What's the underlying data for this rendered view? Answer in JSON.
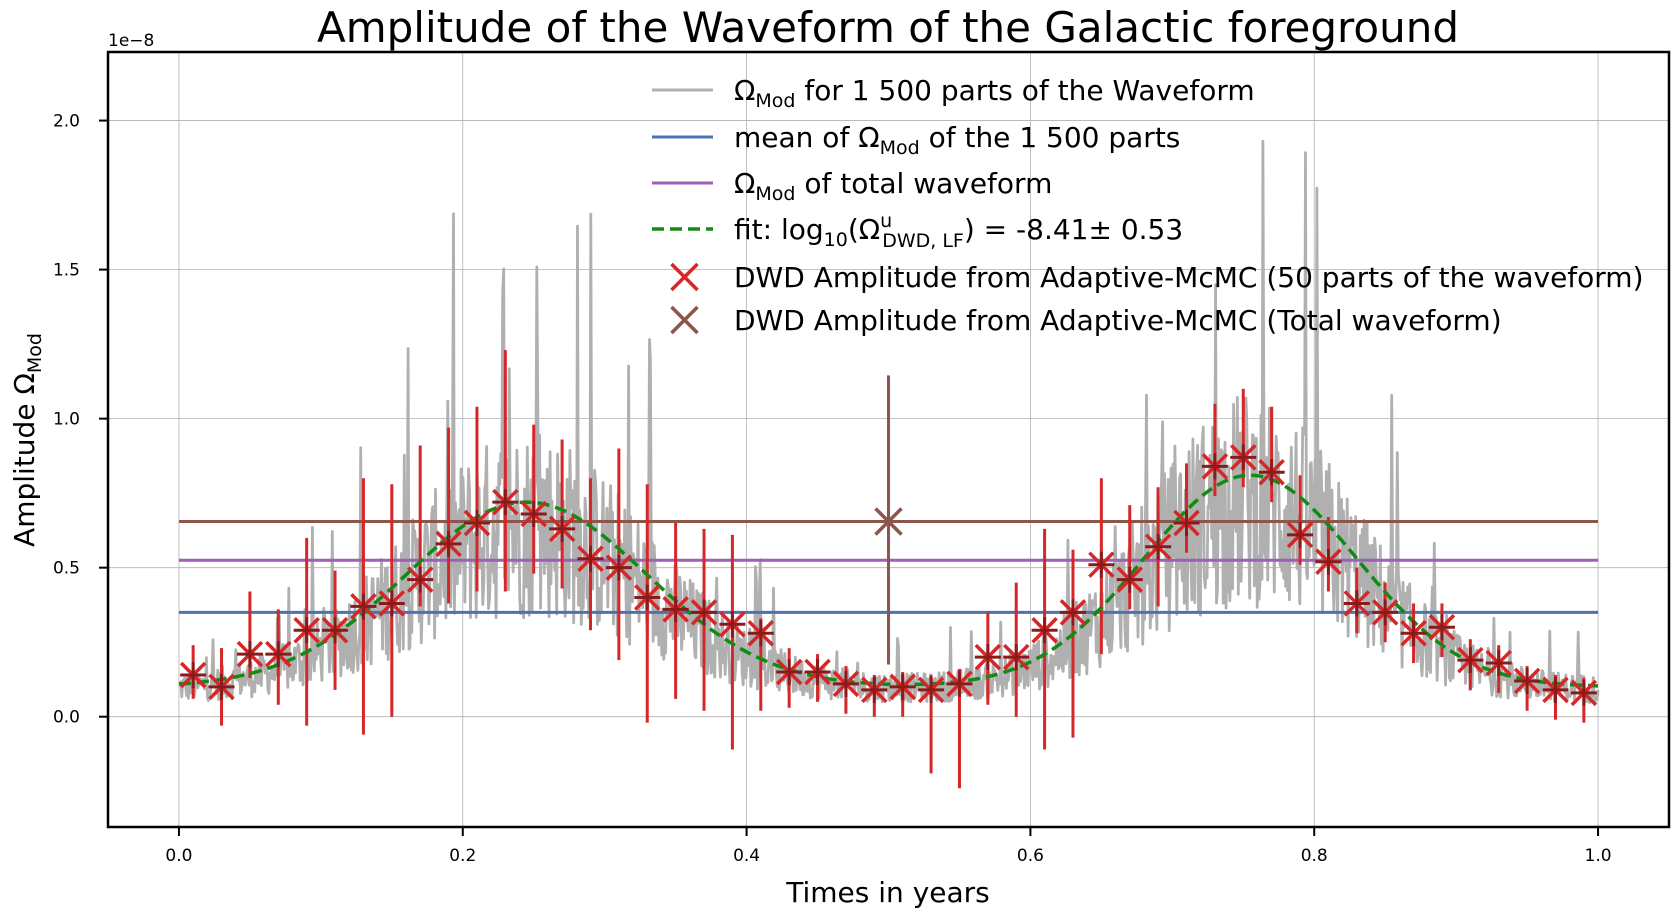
{
  "chart_data": {
    "type": "line",
    "title": "Amplitude of the Waveform of the Galactic foreground",
    "xlabel": "Times in years",
    "ylabel_text": "Amplitude Ω",
    "ylabel_sub": "Mod",
    "xlim": [
      -0.05,
      1.05
    ],
    "ylim": [
      -0.37,
      2.23
    ],
    "offset_text": "1e−8",
    "scale": 1e-08,
    "xticks": [
      0.0,
      0.2,
      0.4,
      0.6,
      0.8,
      1.0
    ],
    "xtick_labels": [
      "0.0",
      "0.2",
      "0.4",
      "0.6",
      "0.8",
      "1.0"
    ],
    "yticks": [
      0.0,
      0.5,
      1.0,
      1.5,
      2.0
    ],
    "ytick_labels": [
      "0.0",
      "0.5",
      "1.0",
      "1.5",
      "2.0"
    ],
    "grid": true,
    "legend_position": "top-right",
    "colors": {
      "parts": "#b0b0b0",
      "mean": "#4c72b0",
      "total": "#a05eb5",
      "fit": "#138a13",
      "markers_parts": "#d62728",
      "markers_parts_dark": "#8b1a1a",
      "markers_total": "#8c564b"
    },
    "legend": [
      {
        "kind": "line",
        "color_key": "parts",
        "main": "Ω",
        "sub": "Mod",
        "text": " for 1 500  parts of the Waveform"
      },
      {
        "kind": "line",
        "color_key": "mean",
        "pre": "mean of Ω",
        "sub": "Mod",
        "text": " of the 1 500 parts"
      },
      {
        "kind": "line",
        "color_key": "total",
        "main": "Ω",
        "sub": "Mod",
        "text": " of total waveform"
      },
      {
        "kind": "dash",
        "color_key": "fit",
        "pre": "fit: log",
        "sub10": "10",
        "open": "(Ω",
        "sup": "u",
        "sub2": "DWD, LF",
        "text": ") = -8.41± 0.53"
      },
      {
        "kind": "x",
        "color_key": "markers_parts",
        "text": "DWD Amplitude from Adaptive-McMC (50 parts of the waveform)"
      },
      {
        "kind": "x",
        "color_key": "markers_total",
        "text": "DWD Amplitude from Adaptive-McMC (Total waveform)"
      }
    ],
    "hlines": {
      "mean": 0.35,
      "total": 0.525,
      "total_mcmc": 0.655
    },
    "fit_curve": {
      "baseline": 0.1,
      "peaks": [
        {
          "center": 0.245,
          "amp": 0.62,
          "width": 0.085
        },
        {
          "center": 0.755,
          "amp": 0.71,
          "width": 0.075
        }
      ]
    },
    "noise_trace": {
      "samples": 1500,
      "spike_prob": 0.045
    },
    "mcmc_parts": {
      "x": [
        0.01,
        0.03,
        0.05,
        0.07,
        0.09,
        0.11,
        0.13,
        0.15,
        0.17,
        0.19,
        0.21,
        0.23,
        0.25,
        0.27,
        0.29,
        0.31,
        0.33,
        0.35,
        0.37,
        0.39,
        0.41,
        0.43,
        0.45,
        0.47,
        0.49,
        0.51,
        0.53,
        0.55,
        0.57,
        0.59,
        0.61,
        0.63,
        0.65,
        0.67,
        0.69,
        0.71,
        0.73,
        0.75,
        0.77,
        0.79,
        0.81,
        0.83,
        0.85,
        0.87,
        0.89,
        0.91,
        0.93,
        0.95,
        0.97,
        0.99
      ],
      "y": [
        0.14,
        0.1,
        0.21,
        0.21,
        0.29,
        0.29,
        0.37,
        0.38,
        0.46,
        0.58,
        0.65,
        0.72,
        0.68,
        0.63,
        0.53,
        0.5,
        0.4,
        0.36,
        0.35,
        0.31,
        0.28,
        0.15,
        0.15,
        0.11,
        0.09,
        0.1,
        0.09,
        0.11,
        0.2,
        0.2,
        0.29,
        0.35,
        0.51,
        0.46,
        0.57,
        0.65,
        0.84,
        0.87,
        0.82,
        0.61,
        0.52,
        0.38,
        0.35,
        0.28,
        0.3,
        0.19,
        0.18,
        0.12,
        0.09,
        0.08
      ],
      "err_low": [
        0.08,
        0.13,
        0.08,
        0.17,
        0.32,
        0.2,
        0.43,
        0.38,
        0.09,
        0.2,
        0.23,
        0.3,
        0.2,
        0.2,
        0.24,
        0.31,
        0.42,
        0.3,
        0.33,
        0.42,
        0.26,
        0.12,
        0.1,
        0.1,
        0.09,
        0.1,
        0.28,
        0.35,
        0.16,
        0.2,
        0.4,
        0.42,
        0.3,
        0.1,
        0.2,
        0.1,
        0.1,
        0.1,
        0.1,
        0.1,
        0.1,
        0.1,
        0.1,
        0.1,
        0.1,
        0.1,
        0.1,
        0.1,
        0.1,
        0.1
      ],
      "err_high": [
        0.1,
        0.13,
        0.21,
        0.15,
        0.31,
        0.2,
        0.43,
        0.4,
        0.45,
        0.39,
        0.39,
        0.51,
        0.3,
        0.3,
        0.27,
        0.4,
        0.38,
        0.29,
        0.28,
        0.3,
        0.05,
        0.08,
        0.06,
        0.06,
        0.05,
        0.05,
        0.05,
        0.05,
        0.15,
        0.25,
        0.34,
        0.21,
        0.29,
        0.25,
        0.2,
        0.2,
        0.21,
        0.23,
        0.22,
        0.2,
        0.15,
        0.12,
        0.1,
        0.1,
        0.08,
        0.07,
        0.06,
        0.05,
        0.05,
        0.05
      ]
    },
    "mcmc_total": {
      "x": 0.5,
      "y": 0.655,
      "err_low": 0.48,
      "err_high": 0.49
    }
  }
}
